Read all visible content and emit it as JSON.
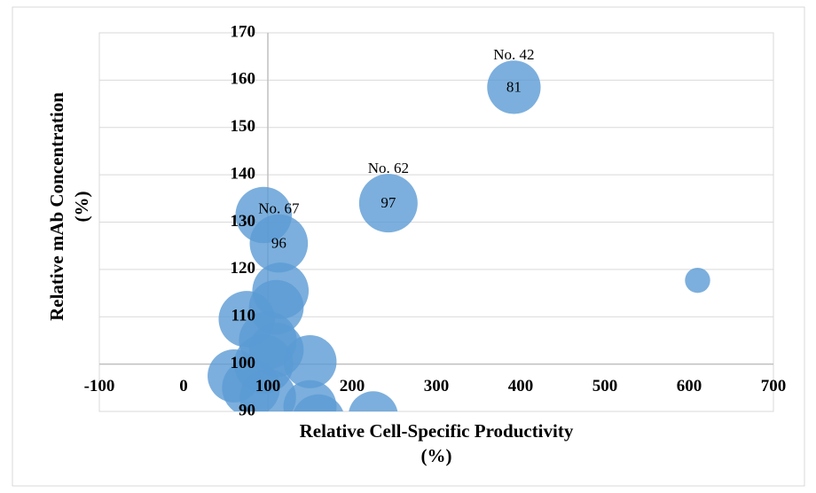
{
  "chart_data": {
    "type": "bubble",
    "x_label": [
      "Relative Cell-Specific Productivity",
      "(%)"
    ],
    "y_label": [
      "Relative mAb Concentration",
      "(%)"
    ],
    "xlim": [
      -100,
      700
    ],
    "xticks": [
      -100,
      0,
      100,
      200,
      300,
      400,
      500,
      600,
      700
    ],
    "ylim": [
      90,
      170
    ],
    "yticks": [
      90,
      100,
      110,
      120,
      130,
      140,
      150,
      160,
      170
    ],
    "yaxis_at_x": 100,
    "xaxis_at_y": 100,
    "grid": true,
    "series": [
      {
        "color": "#5b9bd5",
        "x": [
          95,
          115,
          110,
          75,
          100,
          110,
          150,
          60,
          95,
          80,
          100,
          150,
          225,
          160,
          113,
          243,
          392,
          610
        ],
        "y": [
          131.5,
          115.5,
          112,
          109.5,
          105,
          103,
          100.5,
          97.5,
          100,
          95,
          93,
          91,
          89,
          88,
          125.5,
          134,
          158.5,
          117.7
        ],
        "size": [
          90,
          90,
          85,
          90,
          95,
          85,
          80,
          80,
          100,
          95,
          90,
          80,
          70,
          80,
          96,
          97,
          81,
          18
        ],
        "names": [
          null,
          null,
          null,
          null,
          null,
          null,
          null,
          null,
          null,
          null,
          null,
          null,
          null,
          null,
          "No. 67",
          "No. 62",
          "No. 42",
          null
        ]
      }
    ]
  }
}
